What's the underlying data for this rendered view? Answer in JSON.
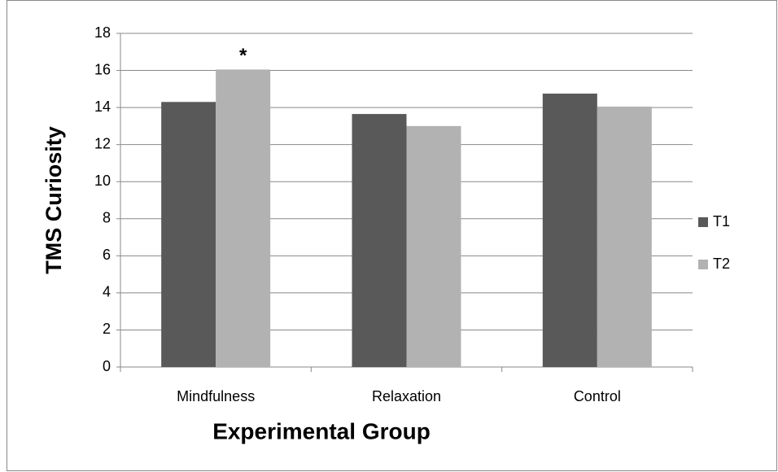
{
  "chart_data": {
    "type": "bar",
    "categories": [
      "Mindfulness",
      "Relaxation",
      "Control"
    ],
    "series": [
      {
        "name": "T1",
        "color": "#595959",
        "values": [
          14.3,
          13.65,
          14.75
        ]
      },
      {
        "name": "T2",
        "color": "#b2b2b2",
        "values": [
          16.05,
          13.0,
          14.05
        ]
      }
    ],
    "ylim": [
      0,
      18
    ],
    "yticks": [
      0,
      2,
      4,
      6,
      8,
      10,
      12,
      14,
      16,
      18
    ],
    "xlabel": "Experimental Group",
    "ylabel": "TMS Curiosity",
    "annotations": [
      {
        "text": "*",
        "category": "Mindfulness",
        "series": "T2"
      }
    ],
    "grid": true,
    "legend": "right"
  }
}
